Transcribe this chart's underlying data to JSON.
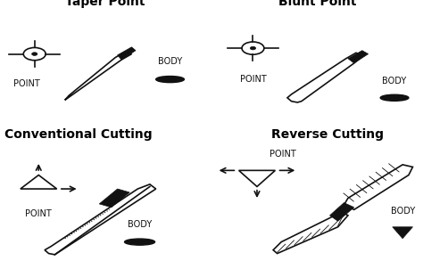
{
  "title_taper": "Taper Point",
  "title_blunt": "Blunt Point",
  "title_conv": "Conventional Cutting",
  "title_rev": "Reverse Cutting",
  "label_point": "POINT",
  "label_body": "BODY",
  "bg_color": "#ffffff",
  "needle_color": "#111111",
  "title_fontsize": 10,
  "label_fontsize": 7
}
